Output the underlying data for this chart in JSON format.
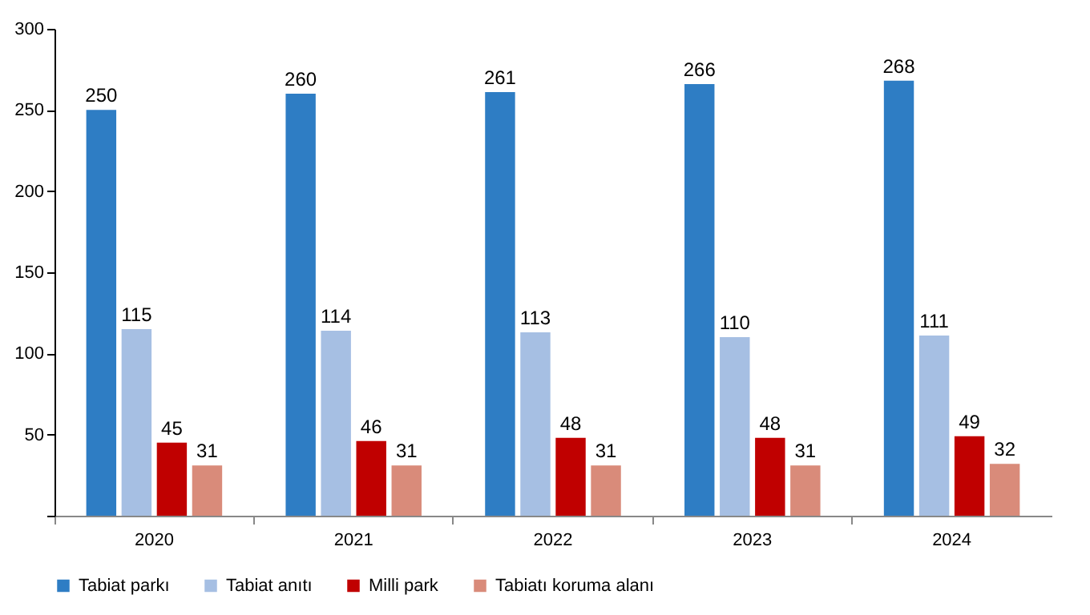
{
  "chart_data": {
    "type": "bar",
    "categories": [
      "2020",
      "2021",
      "2022",
      "2023",
      "2024"
    ],
    "series": [
      {
        "name": "Tabiat parkı",
        "color": "#2e7dc4",
        "values": [
          250,
          260,
          261,
          266,
          268
        ]
      },
      {
        "name": "Tabiat anıtı",
        "color": "#a6bfe3",
        "values": [
          115,
          114,
          113,
          110,
          111
        ]
      },
      {
        "name": "Milli park",
        "color": "#c00000",
        "values": [
          45,
          46,
          48,
          48,
          49
        ]
      },
      {
        "name": "Tabiatı koruma alanı",
        "color": "#d98b7a",
        "values": [
          31,
          31,
          31,
          31,
          32
        ]
      }
    ],
    "ylim": [
      0,
      300
    ],
    "yticks": [
      {
        "value": 0,
        "label": null
      },
      50,
      100,
      150,
      200,
      250,
      300
    ],
    "grid": false,
    "legend": "bottom",
    "data_labels": true
  }
}
